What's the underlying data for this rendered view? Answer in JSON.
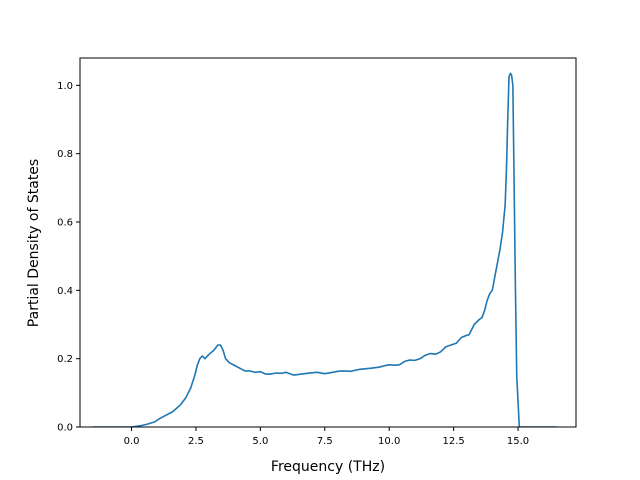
{
  "chart_data": {
    "type": "line",
    "title": "",
    "xlabel": "Frequency (THz)",
    "ylabel": "Partial Density of States",
    "xlim": [
      -2.0,
      17.25
    ],
    "ylim": [
      0.0,
      1.08
    ],
    "grid": false,
    "legend": "none",
    "line_color": "#1f77b4",
    "x_ticks": [
      {
        "value": 0.0,
        "label": "0.0"
      },
      {
        "value": 2.5,
        "label": "2.5"
      },
      {
        "value": 5.0,
        "label": "5.0"
      },
      {
        "value": 7.5,
        "label": "7.5"
      },
      {
        "value": 10.0,
        "label": "10.0"
      },
      {
        "value": 12.5,
        "label": "12.5"
      },
      {
        "value": 15.0,
        "label": "15.0"
      }
    ],
    "y_ticks": [
      {
        "value": 0.0,
        "label": "0.0"
      },
      {
        "value": 0.2,
        "label": "0.2"
      },
      {
        "value": 0.4,
        "label": "0.4"
      },
      {
        "value": 0.6,
        "label": "0.6"
      },
      {
        "value": 0.8,
        "label": "0.8"
      },
      {
        "value": 1.0,
        "label": "1.0"
      }
    ],
    "series": [
      {
        "x": [
          -1.5,
          -0.5,
          0.0,
          0.3,
          0.6,
          0.9,
          1.1,
          1.3,
          1.6,
          1.9,
          2.1,
          2.3,
          2.45,
          2.55,
          2.65,
          2.75,
          2.85,
          3.0,
          3.2,
          3.35,
          3.45,
          3.55,
          3.65,
          3.8,
          4.0,
          4.2,
          4.4,
          4.6,
          4.8,
          5.0,
          5.2,
          5.4,
          5.6,
          5.8,
          6.0,
          6.3,
          6.6,
          6.9,
          7.2,
          7.5,
          7.8,
          8.0,
          8.2,
          8.5,
          8.8,
          9.0,
          9.3,
          9.6,
          9.8,
          10.0,
          10.2,
          10.4,
          10.6,
          10.8,
          11.0,
          11.2,
          11.4,
          11.6,
          11.8,
          12.0,
          12.2,
          12.4,
          12.6,
          12.8,
          13.0,
          13.1,
          13.3,
          13.5,
          13.6,
          13.7,
          13.8,
          13.9,
          14.0,
          14.1,
          14.2,
          14.3,
          14.4,
          14.5,
          14.55,
          14.6,
          14.65,
          14.7,
          14.75,
          14.8,
          14.85,
          14.9,
          14.95,
          15.05,
          15.1,
          15.5,
          16.5
        ],
        "y": [
          0.0,
          0.0,
          0.0,
          0.003,
          0.008,
          0.015,
          0.025,
          0.033,
          0.045,
          0.065,
          0.085,
          0.115,
          0.15,
          0.18,
          0.2,
          0.208,
          0.2,
          0.212,
          0.225,
          0.24,
          0.24,
          0.225,
          0.2,
          0.188,
          0.18,
          0.172,
          0.164,
          0.164,
          0.16,
          0.162,
          0.155,
          0.155,
          0.158,
          0.157,
          0.16,
          0.152,
          0.155,
          0.158,
          0.16,
          0.156,
          0.16,
          0.163,
          0.164,
          0.163,
          0.168,
          0.17,
          0.172,
          0.175,
          0.179,
          0.182,
          0.181,
          0.182,
          0.192,
          0.196,
          0.195,
          0.2,
          0.21,
          0.215,
          0.213,
          0.22,
          0.235,
          0.24,
          0.245,
          0.262,
          0.268,
          0.27,
          0.3,
          0.315,
          0.32,
          0.34,
          0.37,
          0.39,
          0.4,
          0.44,
          0.48,
          0.52,
          0.57,
          0.65,
          0.75,
          0.9,
          1.025,
          1.035,
          1.03,
          1.0,
          0.7,
          0.4,
          0.15,
          0.0,
          0.0,
          0.0,
          0.0
        ]
      }
    ]
  }
}
